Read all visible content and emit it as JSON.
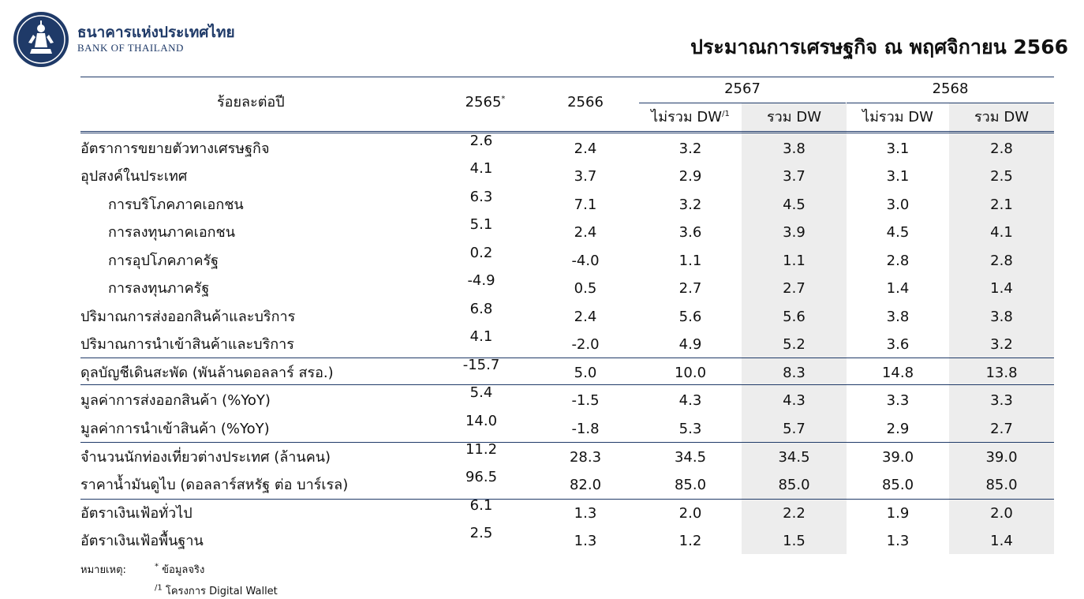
{
  "header": {
    "bank_name_th": "ธนาคารแห่งประเทศไทย",
    "bank_name_en": "BANK OF THAILAND",
    "title": "ประมาณการเศรษฐกิจ ณ พฤศจิกายน 2566",
    "logo_icon": "bank-of-thailand-emblem"
  },
  "table": {
    "unit_label": "ร้อยละต่อปี",
    "col_2565": "2565",
    "col_2565_mark": "*",
    "col_2566": "2566",
    "year_2567": "2567",
    "year_2568": "2568",
    "sub_excl_dw_2567": "ไม่รวม DW",
    "sub_excl_dw_2567_mark": "/1",
    "sub_incl_dw_2567": "รวม DW",
    "sub_excl_dw_2568": "ไม่รวม DW",
    "sub_incl_dw_2568": "รวม DW",
    "rows": [
      {
        "label": "อัตราการขยายตัวทางเศรษฐกิจ",
        "v2565": "2.6",
        "v2566": "2.4",
        "v2567_ex": "3.2",
        "v2567_in": "3.8",
        "v2568_ex": "3.1",
        "v2568_in": "2.8"
      },
      {
        "label": "อุปสงค์ในประเทศ",
        "v2565": "4.1",
        "v2566": "3.7",
        "v2567_ex": "2.9",
        "v2567_in": "3.7",
        "v2568_ex": "3.1",
        "v2568_in": "2.5"
      },
      {
        "label": "การบริโภคภาคเอกชน",
        "v2565": "6.3",
        "v2566": "7.1",
        "v2567_ex": "3.2",
        "v2567_in": "4.5",
        "v2568_ex": "3.0",
        "v2568_in": "2.1"
      },
      {
        "label": "การลงทุนภาคเอกชน",
        "v2565": "5.1",
        "v2566": "2.4",
        "v2567_ex": "3.6",
        "v2567_in": "3.9",
        "v2568_ex": "4.5",
        "v2568_in": "4.1"
      },
      {
        "label": "การอุปโภคภาครัฐ",
        "v2565": "0.2",
        "v2566": "-4.0",
        "v2567_ex": "1.1",
        "v2567_in": "1.1",
        "v2568_ex": "2.8",
        "v2568_in": "2.8"
      },
      {
        "label": "การลงทุนภาครัฐ",
        "v2565": "-4.9",
        "v2566": "0.5",
        "v2567_ex": "2.7",
        "v2567_in": "2.7",
        "v2568_ex": "1.4",
        "v2568_in": "1.4"
      },
      {
        "label": "ปริมาณการส่งออกสินค้าและบริการ",
        "v2565": "6.8",
        "v2566": "2.4",
        "v2567_ex": "5.6",
        "v2567_in": "5.6",
        "v2568_ex": "3.8",
        "v2568_in": "3.8"
      },
      {
        "label": "ปริมาณการนำเข้าสินค้าและบริการ",
        "v2565": "4.1",
        "v2566": "-2.0",
        "v2567_ex": "4.9",
        "v2567_in": "5.2",
        "v2568_ex": "3.6",
        "v2568_in": "3.2"
      },
      {
        "label": "ดุลบัญชีเดินสะพัด (พันล้านดอลลาร์ สรอ.)",
        "v2565": "-15.7",
        "v2566": "5.0",
        "v2567_ex": "10.0",
        "v2567_in": "8.3",
        "v2568_ex": "14.8",
        "v2568_in": "13.8"
      },
      {
        "label": "มูลค่าการส่งออกสินค้า (%YoY)",
        "v2565": "5.4",
        "v2566": "-1.5",
        "v2567_ex": "4.3",
        "v2567_in": "4.3",
        "v2568_ex": "3.3",
        "v2568_in": "3.3"
      },
      {
        "label": "มูลค่าการนำเข้าสินค้า (%YoY)",
        "v2565": "14.0",
        "v2566": "-1.8",
        "v2567_ex": "5.3",
        "v2567_in": "5.7",
        "v2568_ex": "2.9",
        "v2568_in": "2.7"
      },
      {
        "label": "จำนวนนักท่องเที่ยวต่างประเทศ (ล้านคน)",
        "v2565": "11.2",
        "v2566": "28.3",
        "v2567_ex": "34.5",
        "v2567_in": "34.5",
        "v2568_ex": "39.0",
        "v2568_in": "39.0"
      },
      {
        "label": "ราคาน้ำมันดูไบ (ดอลลาร์สหรัฐ ต่อ บาร์เรล)",
        "v2565": "96.5",
        "v2566": "82.0",
        "v2567_ex": "85.0",
        "v2567_in": "85.0",
        "v2568_ex": "85.0",
        "v2568_in": "85.0"
      },
      {
        "label": "อัตราเงินเฟ้อทั่วไป",
        "v2565": "6.1",
        "v2566": "1.3",
        "v2567_ex": "2.0",
        "v2567_in": "2.2",
        "v2568_ex": "1.9",
        "v2568_in": "2.0"
      },
      {
        "label": "อัตราเงินเฟ้อพื้นฐาน",
        "v2565": "2.5",
        "v2566": "1.3",
        "v2567_ex": "1.2",
        "v2567_in": "1.5",
        "v2568_ex": "1.3",
        "v2568_in": "1.4"
      }
    ]
  },
  "notes": {
    "label": "หมายเหตุ:",
    "note1_mark": "*",
    "note1_text": "ข้อมูลจริง",
    "note2_mark": "/1",
    "note2_text": "โครงการ Digital Wallet"
  }
}
